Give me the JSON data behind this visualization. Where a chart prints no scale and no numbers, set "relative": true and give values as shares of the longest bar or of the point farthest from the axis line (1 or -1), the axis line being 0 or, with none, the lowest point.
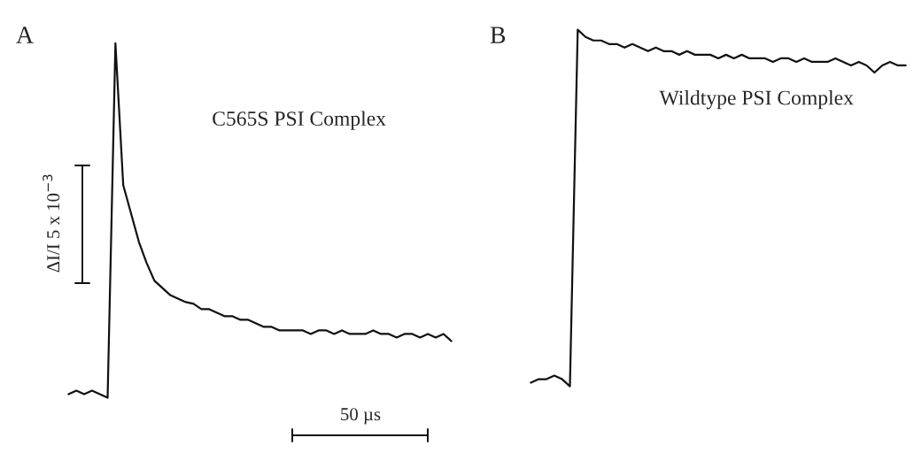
{
  "chart_data": [
    {
      "type": "line",
      "title": "C565S PSI Complex",
      "relative": true,
      "categories": [
        null,
        null,
        null,
        null,
        null,
        null,
        null,
        null,
        null,
        null,
        null,
        null,
        null,
        null,
        null,
        null,
        null,
        null,
        null,
        null,
        null,
        null,
        null,
        null,
        null,
        null,
        null,
        null,
        null,
        null,
        null,
        null,
        null,
        null,
        null,
        null,
        null,
        null,
        null,
        null,
        null,
        null,
        null,
        null,
        null,
        null,
        null,
        null,
        null,
        null
      ],
      "series": [
        {
          "color": "#111111",
          "values": [
            0.01,
            0.02,
            0.01,
            0.02,
            0.01,
            0.0,
            1.0,
            0.6,
            0.52,
            0.44,
            0.38,
            0.33,
            0.31,
            0.29,
            0.28,
            0.27,
            0.265,
            0.25,
            0.25,
            0.24,
            0.23,
            0.23,
            0.22,
            0.22,
            0.21,
            0.2,
            0.2,
            0.19,
            0.19,
            0.19,
            0.19,
            0.18,
            0.19,
            0.19,
            0.18,
            0.19,
            0.18,
            0.18,
            0.18,
            0.19,
            0.18,
            0.18,
            0.17,
            0.18,
            0.18,
            0.17,
            0.18,
            0.17,
            0.18,
            0.16
          ]
        }
      ],
      "annotations": [
        "A",
        "ΔI/I 5 x 10$^{−3}$",
        "50 µs"
      ]
    },
    {
      "type": "line",
      "title": "Wildtype PSI Complex",
      "relative": true,
      "categories": [
        null,
        null,
        null,
        null,
        null,
        null,
        null,
        null,
        null,
        null,
        null,
        null,
        null,
        null,
        null,
        null,
        null,
        null,
        null,
        null,
        null,
        null,
        null,
        null,
        null,
        null,
        null,
        null,
        null,
        null,
        null,
        null,
        null,
        null,
        null,
        null,
        null,
        null,
        null,
        null,
        null,
        null,
        null,
        null,
        null,
        null,
        null,
        null,
        null
      ],
      "series": [
        {
          "color": "#111111",
          "values": [
            0.01,
            0.02,
            0.02,
            0.03,
            0.02,
            0.0,
            1.0,
            0.98,
            0.97,
            0.97,
            0.96,
            0.96,
            0.95,
            0.96,
            0.95,
            0.94,
            0.95,
            0.94,
            0.94,
            0.93,
            0.94,
            0.93,
            0.93,
            0.93,
            0.92,
            0.93,
            0.92,
            0.93,
            0.92,
            0.92,
            0.92,
            0.91,
            0.92,
            0.92,
            0.91,
            0.92,
            0.91,
            0.91,
            0.91,
            0.92,
            0.91,
            0.9,
            0.91,
            0.9,
            0.88,
            0.9,
            0.91,
            0.9,
            0.9
          ]
        }
      ],
      "annotations": [
        "B"
      ]
    }
  ]
}
